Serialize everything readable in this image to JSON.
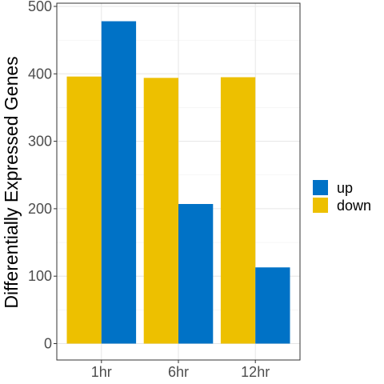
{
  "chart_data": {
    "type": "bar",
    "categories": [
      "1hr",
      "6hr",
      "12hr"
    ],
    "series": [
      {
        "name": "down",
        "color": "#EDC000",
        "values": [
          396,
          394,
          395
        ]
      },
      {
        "name": "up",
        "color": "#0072C6",
        "values": [
          478,
          207,
          113
        ]
      }
    ],
    "xlabel": "",
    "ylabel": "Differentially Expressed Genes",
    "ylim": [
      0,
      500
    ],
    "yticks": [
      0,
      100,
      200,
      300,
      400,
      500
    ],
    "grid": true,
    "legend": {
      "position": "right",
      "entries": [
        {
          "label": "up",
          "color": "#0072C6"
        },
        {
          "label": "down",
          "color": "#EDC000"
        }
      ]
    }
  }
}
